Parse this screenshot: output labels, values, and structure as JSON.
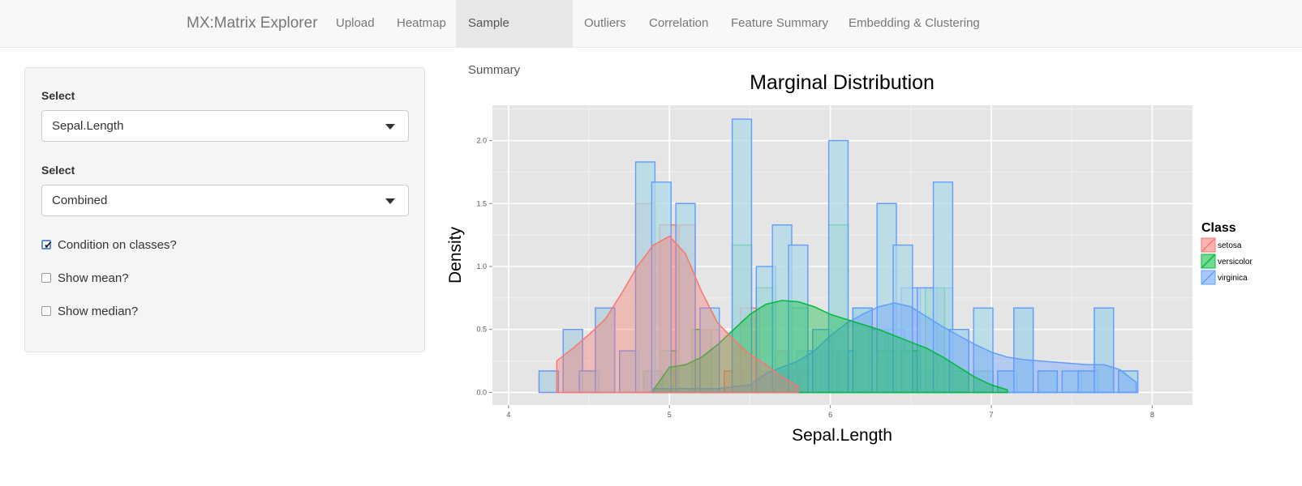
{
  "nav": {
    "brand": "MX:Matrix Explorer",
    "tabs": [
      {
        "label": "Upload"
      },
      {
        "label": "Heatmap"
      },
      {
        "label": "Sample Summary"
      },
      {
        "label": "Outliers"
      },
      {
        "label": "Correlation"
      },
      {
        "label": "Feature Summary"
      },
      {
        "label": "Embedding & Clustering"
      }
    ],
    "active_tab": "Sample Summary"
  },
  "sidebar": {
    "select1": {
      "label": "Select",
      "value": "Sepal.Length"
    },
    "select2": {
      "label": "Select",
      "value": "Combined"
    },
    "checkboxes": [
      {
        "label": "Condition on classes?",
        "checked": true
      },
      {
        "label": "Show mean?",
        "checked": false
      },
      {
        "label": "Show median?",
        "checked": false
      }
    ]
  },
  "colors": {
    "setosa": "#f8766d",
    "versicolor": "#00ba38",
    "virginica": "#619cff",
    "hist_fill": "#add8e6",
    "plot_bg": "#e5e5e5"
  },
  "chart_data": {
    "type": "histogram-density",
    "title": "Marginal Distribution",
    "xlabel": "Sepal.Length",
    "ylabel": "Density",
    "xlim": [
      3.9,
      8.25
    ],
    "ylim": [
      -0.1,
      2.28
    ],
    "xticks": [
      "4",
      "5",
      "6",
      "7",
      "8"
    ],
    "yticks": [
      "0.0",
      "0.5",
      "1.0",
      "1.5",
      "2.0"
    ],
    "legend": {
      "title": "Class",
      "position": "right",
      "entries": [
        "setosa",
        "versicolor",
        "virginica"
      ]
    },
    "bin_width": 0.12,
    "histograms": [
      {
        "name": "virginica",
        "bins": [
          [
            4.9,
            0.17
          ],
          [
            5.6,
            0.17
          ],
          [
            5.75,
            0.17
          ],
          [
            5.85,
            0.33
          ],
          [
            6.0,
            0.33
          ],
          [
            6.1,
            0.33
          ],
          [
            6.2,
            0.67
          ],
          [
            6.3,
            0.5
          ],
          [
            6.4,
            0.5
          ],
          [
            6.5,
            0.83
          ],
          [
            6.6,
            0.17
          ],
          [
            6.7,
            0.83
          ],
          [
            6.8,
            0.5
          ],
          [
            6.95,
            0.17
          ],
          [
            7.1,
            0.17
          ],
          [
            7.2,
            0.67
          ],
          [
            7.35,
            0.17
          ],
          [
            7.6,
            0.17
          ],
          [
            7.7,
            0.67
          ],
          [
            7.85,
            0.17
          ]
        ]
      },
      {
        "name": "versicolor",
        "bins": [
          [
            4.9,
            0.17
          ],
          [
            5.0,
            0.33
          ],
          [
            5.2,
            0.5
          ],
          [
            5.45,
            1.17
          ],
          [
            5.6,
            0.83
          ],
          [
            5.7,
            0.33
          ],
          [
            5.8,
            0.67
          ],
          [
            5.95,
            0.5
          ],
          [
            6.05,
            1.33
          ],
          [
            6.2,
            0.67
          ],
          [
            6.35,
            0.33
          ],
          [
            6.5,
            0.33
          ],
          [
            6.65,
            0.83
          ],
          [
            6.8,
            0.17
          ],
          [
            6.95,
            0.17
          ]
        ]
      },
      {
        "name": "setosa",
        "bins": [
          [
            4.25,
            0.17
          ],
          [
            4.4,
            0.5
          ],
          [
            4.5,
            0.17
          ],
          [
            4.6,
            0.67
          ],
          [
            4.75,
            0.33
          ],
          [
            4.85,
            1.5
          ],
          [
            5.0,
            1.33
          ],
          [
            5.1,
            1.33
          ],
          [
            5.25,
            0.5
          ],
          [
            5.4,
            0.17
          ],
          [
            5.5,
            0.67
          ],
          [
            5.7,
            0.33
          ],
          [
            5.8,
            0.17
          ]
        ]
      },
      {
        "name": "combined",
        "bins": [
          [
            4.25,
            0.17
          ],
          [
            4.4,
            0.5
          ],
          [
            4.5,
            0.17
          ],
          [
            4.6,
            0.67
          ],
          [
            4.75,
            0.33
          ],
          [
            4.85,
            1.83
          ],
          [
            4.95,
            1.67
          ],
          [
            5.1,
            1.5
          ],
          [
            5.25,
            0.67
          ],
          [
            5.45,
            2.17
          ],
          [
            5.6,
            1.0
          ],
          [
            5.7,
            1.33
          ],
          [
            5.8,
            1.17
          ],
          [
            5.95,
            0.5
          ],
          [
            6.05,
            2.0
          ],
          [
            6.2,
            0.67
          ],
          [
            6.35,
            1.5
          ],
          [
            6.45,
            1.17
          ],
          [
            6.6,
            0.83
          ],
          [
            6.7,
            1.67
          ],
          [
            6.8,
            0.5
          ],
          [
            6.95,
            0.67
          ],
          [
            7.1,
            0.17
          ],
          [
            7.2,
            0.67
          ],
          [
            7.35,
            0.17
          ],
          [
            7.5,
            0.17
          ],
          [
            7.6,
            0.17
          ],
          [
            7.7,
            0.67
          ],
          [
            7.85,
            0.17
          ]
        ]
      }
    ],
    "densities": [
      {
        "name": "setosa",
        "points": [
          [
            4.3,
            0.25
          ],
          [
            4.4,
            0.35
          ],
          [
            4.5,
            0.46
          ],
          [
            4.6,
            0.58
          ],
          [
            4.7,
            0.78
          ],
          [
            4.8,
            1.0
          ],
          [
            4.9,
            1.17
          ],
          [
            5.0,
            1.24
          ],
          [
            5.1,
            1.1
          ],
          [
            5.2,
            0.8
          ],
          [
            5.3,
            0.55
          ],
          [
            5.4,
            0.42
          ],
          [
            5.5,
            0.3
          ],
          [
            5.6,
            0.22
          ],
          [
            5.7,
            0.12
          ],
          [
            5.8,
            0.05
          ]
        ]
      },
      {
        "name": "versicolor",
        "points": [
          [
            4.9,
            0.02
          ],
          [
            5.0,
            0.2
          ],
          [
            5.1,
            0.22
          ],
          [
            5.2,
            0.28
          ],
          [
            5.3,
            0.38
          ],
          [
            5.4,
            0.5
          ],
          [
            5.5,
            0.62
          ],
          [
            5.6,
            0.7
          ],
          [
            5.7,
            0.73
          ],
          [
            5.8,
            0.72
          ],
          [
            5.9,
            0.68
          ],
          [
            6.0,
            0.62
          ],
          [
            6.1,
            0.58
          ],
          [
            6.2,
            0.54
          ],
          [
            6.3,
            0.5
          ],
          [
            6.4,
            0.45
          ],
          [
            6.5,
            0.4
          ],
          [
            6.6,
            0.35
          ],
          [
            6.7,
            0.28
          ],
          [
            6.8,
            0.2
          ],
          [
            6.9,
            0.12
          ],
          [
            7.0,
            0.06
          ],
          [
            7.1,
            0.02
          ]
        ]
      },
      {
        "name": "virginica",
        "points": [
          [
            4.9,
            0.03
          ],
          [
            5.3,
            0.03
          ],
          [
            5.5,
            0.06
          ],
          [
            5.6,
            0.15
          ],
          [
            5.7,
            0.2
          ],
          [
            5.8,
            0.25
          ],
          [
            5.9,
            0.33
          ],
          [
            6.0,
            0.45
          ],
          [
            6.1,
            0.55
          ],
          [
            6.2,
            0.62
          ],
          [
            6.3,
            0.68
          ],
          [
            6.4,
            0.71
          ],
          [
            6.5,
            0.68
          ],
          [
            6.6,
            0.6
          ],
          [
            6.7,
            0.52
          ],
          [
            6.8,
            0.45
          ],
          [
            6.9,
            0.38
          ],
          [
            7.0,
            0.32
          ],
          [
            7.1,
            0.28
          ],
          [
            7.2,
            0.26
          ],
          [
            7.3,
            0.25
          ],
          [
            7.4,
            0.24
          ],
          [
            7.5,
            0.23
          ],
          [
            7.6,
            0.22
          ],
          [
            7.7,
            0.22
          ],
          [
            7.8,
            0.18
          ],
          [
            7.9,
            0.08
          ]
        ]
      }
    ]
  }
}
